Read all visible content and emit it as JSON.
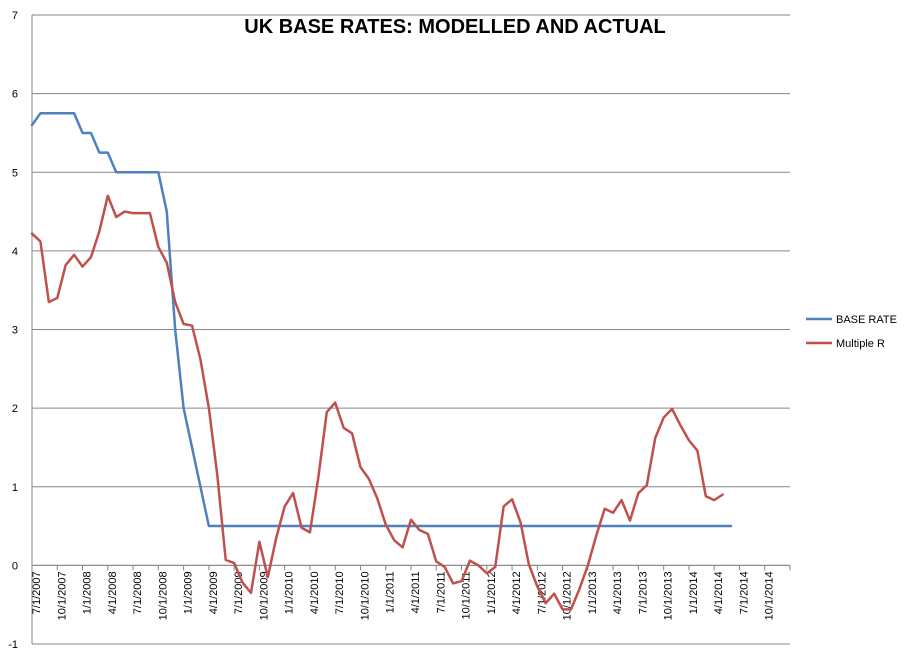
{
  "chart_data": {
    "type": "line",
    "title": "UK BASE RATES: MODELLED AND ACTUAL",
    "xlabel": "",
    "ylabel": "",
    "ylim": [
      -1,
      7
    ],
    "yticks": [
      -1,
      0,
      1,
      2,
      3,
      4,
      5,
      6,
      7
    ],
    "xticks": [
      "7/1/2007",
      "10/1/2007",
      "1/1/2008",
      "4/1/2008",
      "7/1/2008",
      "10/1/2008",
      "1/1/2009",
      "4/1/2009",
      "7/1/2009",
      "10/1/2009",
      "1/1/2010",
      "4/1/2010",
      "7/1/2010",
      "10/1/2010",
      "1/1/2011",
      "4/1/2011",
      "7/1/2011",
      "10/1/2011",
      "1/1/2012",
      "4/1/2012",
      "7/1/2012",
      "10/1/2012",
      "1/1/2013",
      "4/1/2013",
      "7/1/2013",
      "10/1/2013",
      "1/1/2014",
      "4/1/2014",
      "7/1/2014",
      "10/1/2014"
    ],
    "grid": true,
    "legend": "right",
    "series": [
      {
        "name": "BASE RATE",
        "color": "#4F81BD",
        "values": [
          5.6,
          5.75,
          5.75,
          5.75,
          5.75,
          5.75,
          5.5,
          5.5,
          5.25,
          5.25,
          5.0,
          5.0,
          5.0,
          5.0,
          5.0,
          5.0,
          4.5,
          3.0,
          2.0,
          1.5,
          1.0,
          0.5,
          0.5,
          0.5,
          0.5,
          0.5,
          0.5,
          0.5,
          0.5,
          0.5,
          0.5,
          0.5,
          0.5,
          0.5,
          0.5,
          0.5,
          0.5,
          0.5,
          0.5,
          0.5,
          0.5,
          0.5,
          0.5,
          0.5,
          0.5,
          0.5,
          0.5,
          0.5,
          0.5,
          0.5,
          0.5,
          0.5,
          0.5,
          0.5,
          0.5,
          0.5,
          0.5,
          0.5,
          0.5,
          0.5,
          0.5,
          0.5,
          0.5,
          0.5,
          0.5,
          0.5,
          0.5,
          0.5,
          0.5,
          0.5,
          0.5,
          0.5,
          0.5,
          0.5,
          0.5,
          0.5,
          0.5,
          0.5,
          0.5,
          0.5,
          0.5,
          0.5,
          0.5,
          0.5
        ]
      },
      {
        "name": "Multiple R",
        "color": "#C0504D",
        "values": [
          4.22,
          4.12,
          3.35,
          3.4,
          3.82,
          3.95,
          3.8,
          3.92,
          4.25,
          4.7,
          4.43,
          4.5,
          4.48,
          4.48,
          4.48,
          4.05,
          3.85,
          3.35,
          3.07,
          3.05,
          2.62,
          2.0,
          1.15,
          0.07,
          0.03,
          -0.22,
          -0.35,
          0.3,
          -0.15,
          0.35,
          0.75,
          0.92,
          0.48,
          0.42,
          1.12,
          1.95,
          2.07,
          1.75,
          1.68,
          1.25,
          1.1,
          0.85,
          0.52,
          0.32,
          0.23,
          0.58,
          0.45,
          0.4,
          0.05,
          -0.02,
          -0.23,
          -0.2,
          0.06,
          0.0,
          -0.1,
          -0.02,
          0.75,
          0.84,
          0.55,
          0.01,
          -0.27,
          -0.48,
          -0.36,
          -0.56,
          -0.56,
          -0.3,
          0.0,
          0.38,
          0.72,
          0.67,
          0.83,
          0.57,
          0.92,
          1.02,
          1.62,
          1.88,
          1.99,
          1.78,
          1.59,
          1.46,
          0.88,
          0.83,
          0.9
        ]
      }
    ]
  }
}
